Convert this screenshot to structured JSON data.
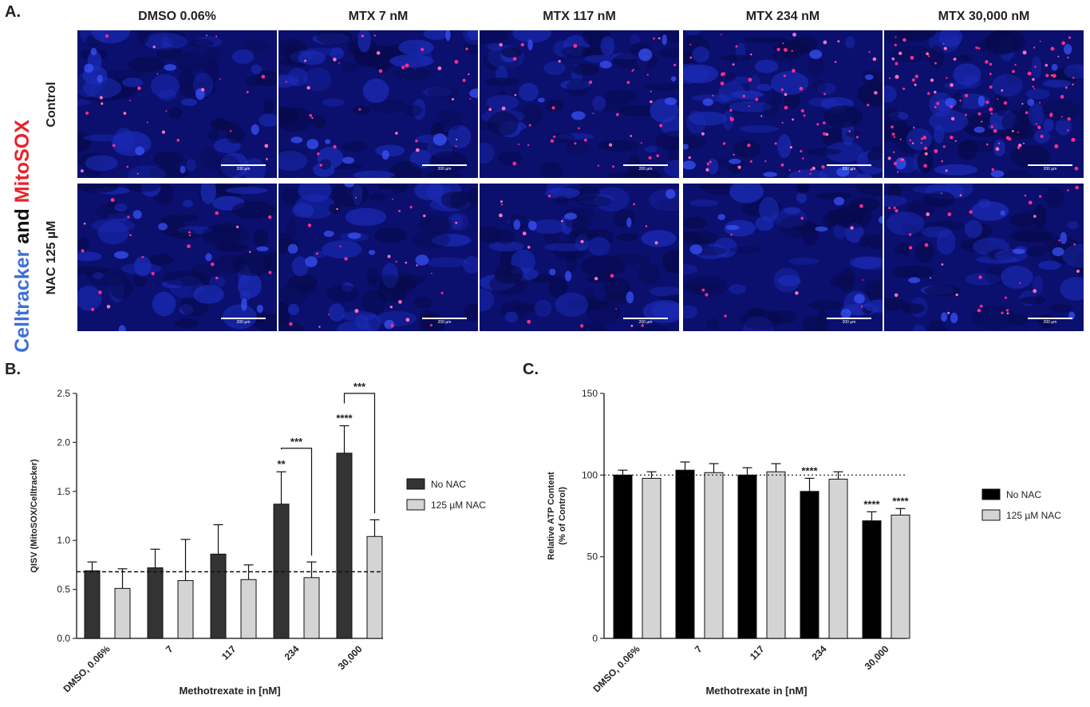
{
  "panel_a": {
    "letter": "A.",
    "side_label_parts": [
      {
        "text": "Celltracker",
        "color": "#3f6fd8"
      },
      {
        "text": " and ",
        "color": "#111111"
      },
      {
        "text": "MitoSOX",
        "color": "#e8232a"
      }
    ],
    "columns": [
      "DMSO 0.06%",
      "MTX 7 nM",
      "MTX 117 nM",
      "MTX 234 nM",
      "MTX 30,000 nM"
    ],
    "rows": [
      "Control",
      "NAC 125 µM"
    ],
    "scale_bar_label": "200 µm",
    "red_dot_density": [
      [
        26,
        30,
        38,
        70,
        120
      ],
      [
        20,
        26,
        18,
        10,
        34
      ]
    ]
  },
  "chart_data": [
    {
      "letter": "B.",
      "type": "bar",
      "categories": [
        "DMSO, 0.06%",
        "7",
        "117",
        "234",
        "30,000"
      ],
      "xlabel": "Methotrexate in [nM]",
      "ylabel": "QISV (MitoSOX/Celltracker)",
      "ylim": [
        0,
        2.5
      ],
      "yticks": [
        "0.0",
        "0.5",
        "1.0",
        "1.5",
        "2.0",
        "2.5"
      ],
      "reference_line": {
        "y": 0.68,
        "style": "dashed"
      },
      "series": [
        {
          "name": "No NAC",
          "color": "#333333",
          "values": [
            0.69,
            0.72,
            0.86,
            1.37,
            1.89
          ],
          "errors": [
            0.09,
            0.19,
            0.3,
            0.33,
            0.28
          ]
        },
        {
          "name": "125 µM NAC",
          "color": "#d4d4d4",
          "values": [
            0.51,
            0.59,
            0.6,
            0.62,
            1.04
          ],
          "errors": [
            0.2,
            0.42,
            0.15,
            0.16,
            0.17
          ]
        }
      ],
      "annotations": [
        {
          "category": 3,
          "series": 0,
          "text": "**"
        },
        {
          "category": 4,
          "series": 0,
          "text": "****"
        }
      ],
      "brackets": [
        {
          "category": 3,
          "y": 1.94,
          "text": "***"
        },
        {
          "category": 4,
          "y": 2.5,
          "text": "***"
        }
      ]
    },
    {
      "letter": "C.",
      "type": "bar",
      "categories": [
        "DMSO, 0.06%",
        "7",
        "117",
        "234",
        "30,000"
      ],
      "xlabel": "Methotrexate in [nM]",
      "ylabel": "Relative ATP Content",
      "ylabel2": "(% of Control)",
      "ylim": [
        0,
        150
      ],
      "yticks": [
        "0",
        "50",
        "100",
        "150"
      ],
      "reference_line": {
        "y": 100,
        "style": "dotted"
      },
      "series": [
        {
          "name": "No NAC",
          "color": "#000000",
          "values": [
            100,
            103,
            100,
            90,
            72
          ],
          "errors": [
            3,
            5,
            4.5,
            8,
            5.5
          ]
        },
        {
          "name": "125 µM NAC",
          "color": "#d4d4d4",
          "values": [
            98,
            101.5,
            102,
            97.5,
            75.5
          ],
          "errors": [
            4,
            5.5,
            5,
            4.5,
            4
          ]
        }
      ],
      "annotations": [
        {
          "category": 3,
          "series": 0,
          "text": "****"
        },
        {
          "category": 4,
          "series": 0,
          "text": "****"
        },
        {
          "category": 4,
          "series": 1,
          "text": "****"
        }
      ],
      "brackets": []
    }
  ]
}
